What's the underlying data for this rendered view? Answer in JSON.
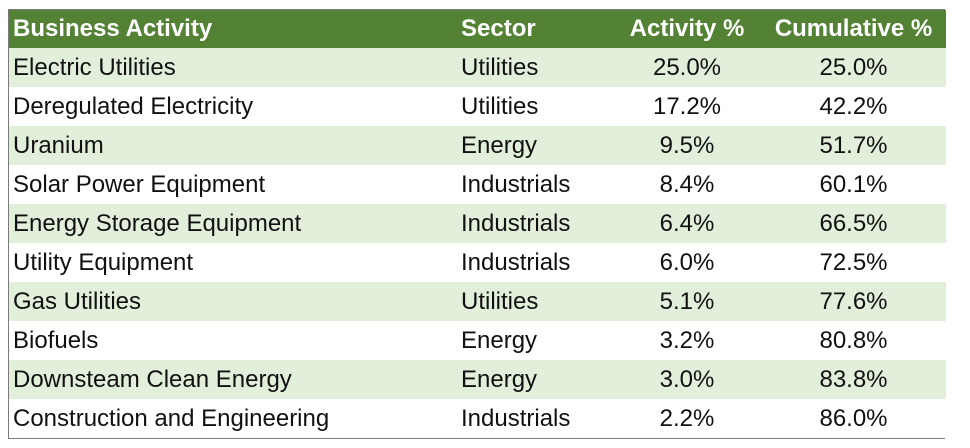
{
  "chart_data": {
    "type": "table",
    "columns": [
      "Business Activity",
      "Sector",
      "Activity %",
      "Cumulative %"
    ],
    "rows": [
      [
        "Electric Utilities",
        "Utilities",
        "25.0%",
        "25.0%"
      ],
      [
        "Deregulated Electricity",
        "Utilities",
        "17.2%",
        "42.2%"
      ],
      [
        "Uranium",
        "Energy",
        "9.5%",
        "51.7%"
      ],
      [
        "Solar Power Equipment",
        "Industrials",
        "8.4%",
        "60.1%"
      ],
      [
        "Energy Storage Equipment",
        "Industrials",
        "6.4%",
        "66.5%"
      ],
      [
        "Utility Equipment",
        "Industrials",
        "6.0%",
        "72.5%"
      ],
      [
        "Gas Utilities",
        "Utilities",
        "5.1%",
        "77.6%"
      ],
      [
        "Biofuels",
        "Energy",
        "3.2%",
        "80.8%"
      ],
      [
        "Downsteam Clean Energy",
        "Energy",
        "3.0%",
        "83.8%"
      ],
      [
        "Construction and Engineering",
        "Industrials",
        "2.2%",
        "86.0%"
      ]
    ]
  },
  "colors": {
    "header_bg": "#548235",
    "band_bg": "#e2efda"
  }
}
